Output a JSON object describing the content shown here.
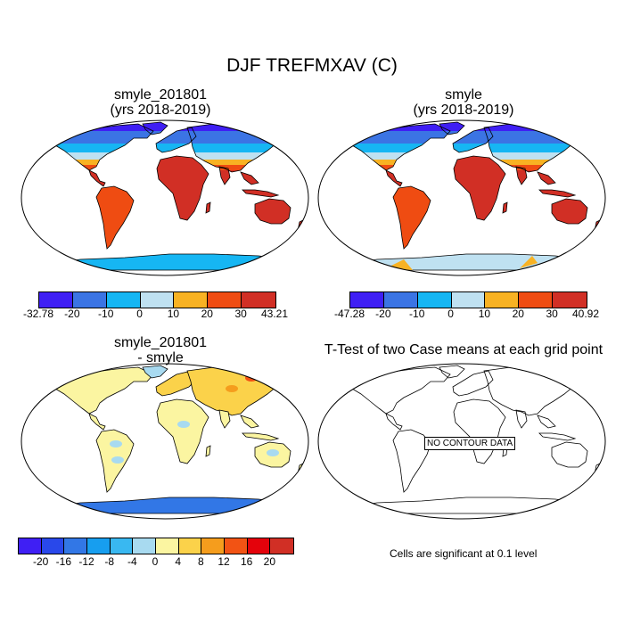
{
  "figure": {
    "title": "DJF TREFMXAV (C)",
    "note": "Cells are significant at 0.1 level"
  },
  "panels": [
    {
      "title_line1": "smyle_201801",
      "title_line2": "(yrs 2018-2019)"
    },
    {
      "title_line1": "smyle",
      "title_line2": "(yrs 2018-2019)"
    },
    {
      "title_line1": "smyle_201801",
      "title_line2": "- smyle"
    },
    {
      "title_line1": "T-Test of two Case means at each grid point",
      "overlay": "NO CONTOUR DATA"
    }
  ],
  "colorbars": [
    {
      "labels": [
        "-32.78",
        "-20",
        "-10",
        "0",
        "10",
        "20",
        "30",
        "43.21"
      ],
      "colors": [
        "#3f1ff4",
        "#3b74e4",
        "#16b6f3",
        "#bfe1f1",
        "#f8b223",
        "#ef4c12",
        "#d12f25"
      ]
    },
    {
      "labels": [
        "-47.28",
        "-20",
        "-10",
        "0",
        "10",
        "20",
        "30",
        "40.92"
      ],
      "colors": [
        "#3f1ff4",
        "#3b74e4",
        "#16b6f3",
        "#bfe1f1",
        "#f8b223",
        "#ef4c12",
        "#d12f25"
      ]
    },
    {
      "labels": [
        "-20",
        "-16",
        "-12",
        "-8",
        "-4",
        "0",
        "4",
        "8",
        "12",
        "16",
        "20"
      ],
      "colors": [
        "#3f1ff4",
        "#2948ea",
        "#3277e6",
        "#179eef",
        "#39b8f1",
        "#a8daf0",
        "#fbf5a1",
        "#fbd24a",
        "#f59d1d",
        "#f25314",
        "#e4020b",
        "#d12f25"
      ]
    }
  ],
  "map_colors": {
    "ocean": "#ffffff",
    "coast": "#000000"
  }
}
